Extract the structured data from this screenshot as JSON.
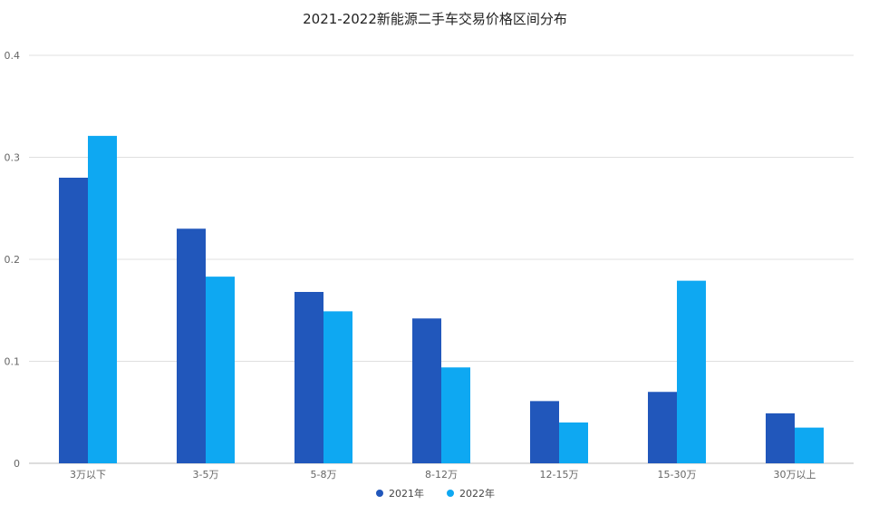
{
  "chart_data": {
    "type": "bar",
    "title": "2021-2022新能源二手车交易价格区间分布",
    "xlabel": "",
    "ylabel": "",
    "categories": [
      "3万以下",
      "3-5万",
      "5-8万",
      "8-12万",
      "12-15万",
      "15-30万",
      "30万以上"
    ],
    "series": [
      {
        "name": "2021年",
        "color": "#2157bb",
        "values": [
          0.28,
          0.23,
          0.168,
          0.142,
          0.061,
          0.07,
          0.049
        ]
      },
      {
        "name": "2022年",
        "color": "#0ea8f2",
        "values": [
          0.321,
          0.183,
          0.149,
          0.094,
          0.04,
          0.179,
          0.035
        ]
      }
    ],
    "ylim": [
      0,
      0.4
    ],
    "yticks": [
      "0",
      "0.1",
      "0.2",
      "0.3",
      "0.4"
    ],
    "grid": true,
    "legend_position": "bottom"
  }
}
